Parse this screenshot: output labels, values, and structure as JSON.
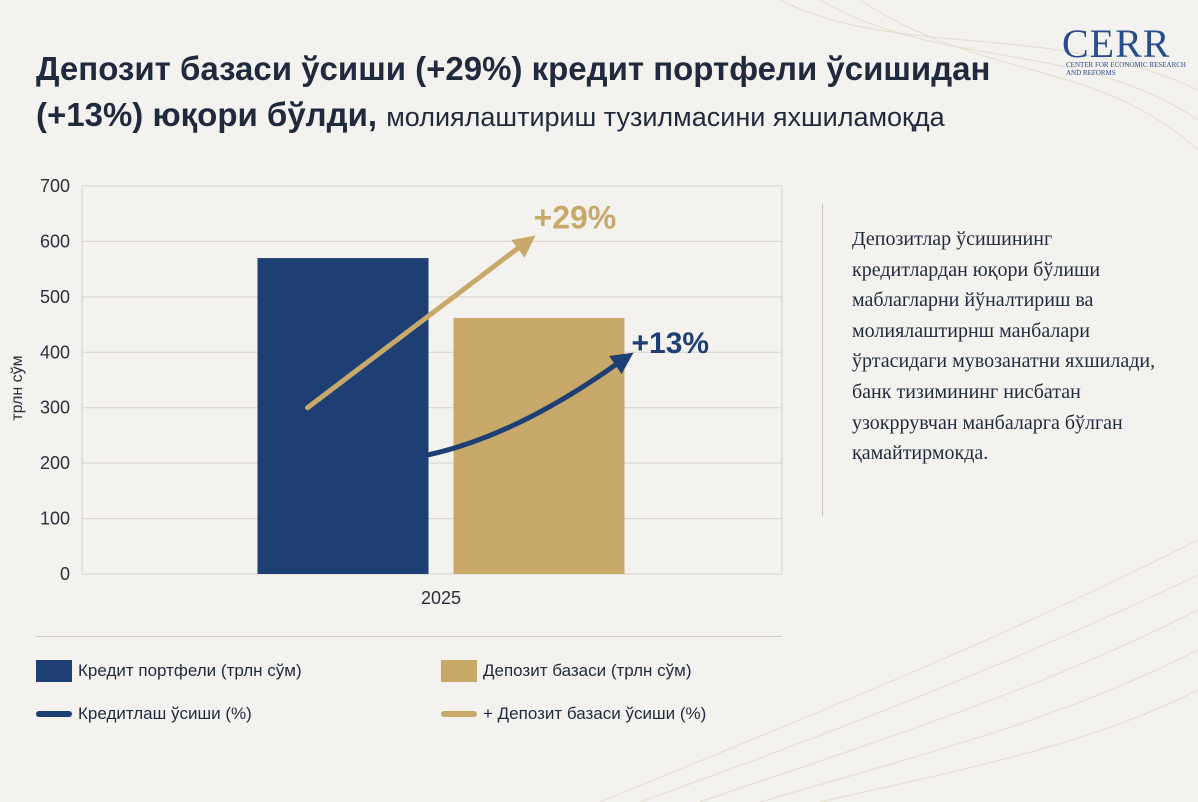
{
  "title": {
    "main": "Депозит базаси ўсиши (+29%) кредит портфели ўсишидан (+13%) юқори бўлди,",
    "sub": "молиялаштириш тузилмасини яхшиламоқда"
  },
  "logo": {
    "text": "CERR",
    "subtitle": "Center for Economic Research and Reforms"
  },
  "chart_data": {
    "type": "bar",
    "categories": [
      "2025"
    ],
    "series": [
      {
        "name": "Кредит портфели (трлн сўм)",
        "values": [
          570
        ],
        "color": "#1e3f73"
      },
      {
        "name": "Депозит базаси (трлн сўм)",
        "values": [
          462
        ],
        "color": "#c9a96a"
      }
    ],
    "ylabel": "трлн сўм",
    "ylim": [
      0,
      700
    ],
    "yticks": [
      0,
      100,
      200,
      300,
      400,
      500,
      600,
      700
    ],
    "grid": true,
    "annotations": [
      {
        "label": "+29%",
        "color": "#c9a96a"
      },
      {
        "label": "+13%",
        "color": "#1e3f73"
      }
    ]
  },
  "description": "Депозитлар ўсишининг кредитлардан юқори бўлиши маблагларни йўналтириш ва молиялаштирнш манбалари ўртасидаги мувозанатни яхшилади, банк тизимининг нисбатан узокррувчан манбаларга бўлган қамайтирмокда.",
  "legend": [
    {
      "label": "Кредит портфели (трлн сўм)",
      "kind": "rect",
      "color": "#1e3f73"
    },
    {
      "label": "Депозит базаси (трлн сўм)",
      "kind": "rect",
      "color": "#c9a96a"
    },
    {
      "label": "Кредитлаш ўсиши (%)",
      "kind": "line",
      "color": "#1e3f73"
    },
    {
      "label": "+ Депозит базаси ўсиши (%)",
      "kind": "line",
      "color": "#c9a96a"
    }
  ]
}
